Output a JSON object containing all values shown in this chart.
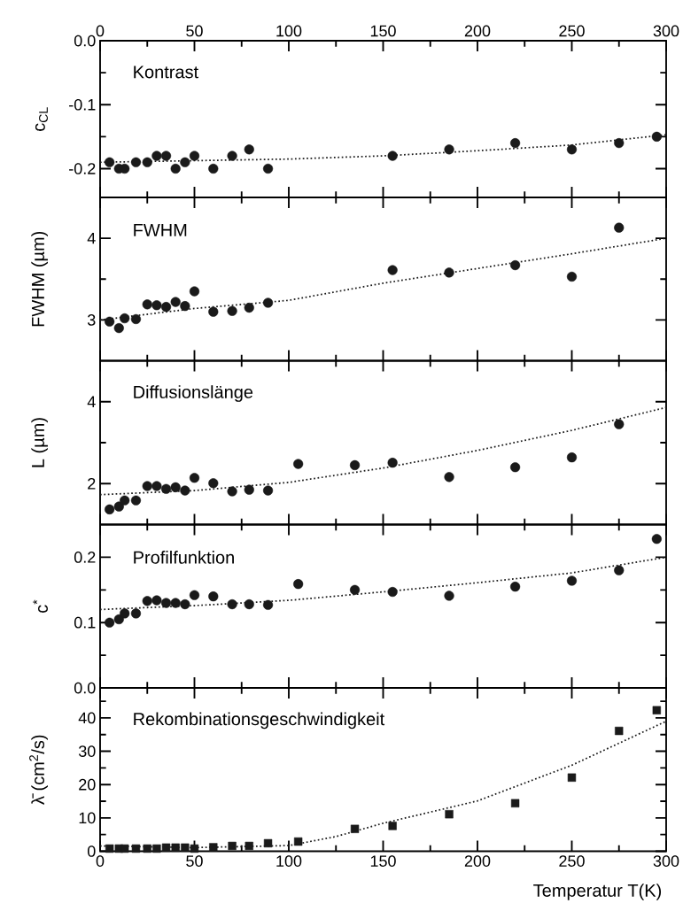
{
  "chart_data": [
    {
      "type": "scatter",
      "title": "Kontrast",
      "ylabel": "c$_{CL}$",
      "xlim": [
        0,
        300
      ],
      "xticks": [
        0,
        {
          "value": 25,
          "label": null
        },
        50,
        {
          "value": 75,
          "label": null
        },
        100,
        {
          "value": 125,
          "label": null
        },
        150,
        {
          "value": 175,
          "label": null
        },
        200,
        {
          "value": 225,
          "label": null
        },
        250,
        {
          "value": 275,
          "label": null
        },
        300
      ],
      "ylim": [
        -0.245,
        0
      ],
      "yticks": [
        {
          "value": -0.2,
          "label": "-0.2"
        },
        {
          "value": -0.15,
          "label": null
        },
        {
          "value": -0.1,
          "label": "-0.1"
        },
        {
          "value": -0.05,
          "label": null
        },
        {
          "value": 0,
          "label": "0.0"
        }
      ],
      "marker": "circle",
      "series": [
        {
          "color": "#1a1a1a",
          "x": [
            5,
            10,
            13,
            19,
            25,
            30,
            35,
            40,
            45,
            50,
            60,
            70,
            79,
            89,
            155,
            185,
            220,
            250,
            275,
            295
          ],
          "values": [
            -0.19,
            -0.2,
            -0.2,
            -0.19,
            -0.19,
            -0.18,
            -0.18,
            -0.2,
            -0.19,
            -0.18,
            -0.2,
            -0.18,
            -0.17,
            -0.2,
            -0.18,
            -0.17,
            -0.16,
            -0.17,
            -0.16,
            -0.15
          ]
        },
        {
          "type": "line",
          "color": "#1a1a1a",
          "line_style": "dotted",
          "marker": "none",
          "x": [
            0,
            100,
            150,
            200,
            250,
            300
          ],
          "values": [
            -0.19,
            -0.185,
            -0.18,
            -0.172,
            -0.163,
            -0.147
          ]
        }
      ]
    },
    {
      "type": "scatter",
      "title": "FWHM",
      "ylabel": "FWHM (µm)",
      "xlim": [
        0,
        300
      ],
      "xticks": [
        0,
        {
          "value": 25,
          "label": null
        },
        50,
        {
          "value": 75,
          "label": null
        },
        100,
        {
          "value": 125,
          "label": null
        },
        150,
        {
          "value": 175,
          "label": null
        },
        200,
        {
          "value": 225,
          "label": null
        },
        250,
        {
          "value": 275,
          "label": null
        },
        300
      ],
      "ylim": [
        2.5,
        4.5
      ],
      "yticks": [
        3,
        {
          "value": 3.5,
          "label": null
        },
        4
      ],
      "tick_labels": "y",
      "marker": "circle",
      "series": [
        {
          "color": "#1a1a1a",
          "x": [
            5,
            10,
            13,
            19,
            25,
            30,
            35,
            40,
            45,
            50,
            60,
            70,
            79,
            89,
            155,
            185,
            220,
            250,
            275
          ],
          "values": [
            2.98,
            2.9,
            3.02,
            3.01,
            3.19,
            3.18,
            3.16,
            3.22,
            3.17,
            3.35,
            3.1,
            3.11,
            3.15,
            3.21,
            3.61,
            3.58,
            3.67,
            3.53,
            4.13
          ]
        },
        {
          "type": "line",
          "color": "#1a1a1a",
          "line_style": "dotted",
          "marker": "none",
          "x": [
            0,
            50,
            100,
            150,
            200,
            250,
            300
          ],
          "values": [
            3.0,
            3.14,
            3.24,
            3.45,
            3.63,
            3.81,
            4.0
          ]
        }
      ]
    },
    {
      "type": "scatter",
      "title": "Diffusionslänge",
      "ylabel": "L  (µm)",
      "xlim": [
        0,
        300
      ],
      "xticks": [
        0,
        {
          "value": 25,
          "label": null
        },
        50,
        {
          "value": 75,
          "label": null
        },
        100,
        {
          "value": 125,
          "label": null
        },
        150,
        {
          "value": 175,
          "label": null
        },
        200,
        {
          "value": 225,
          "label": null
        },
        250,
        {
          "value": 275,
          "label": null
        },
        300
      ],
      "ylim": [
        1,
        5
      ],
      "yticks": [
        2,
        {
          "value": 3,
          "label": null
        },
        4
      ],
      "tick_labels": "y",
      "marker": "circle",
      "series": [
        {
          "color": "#1a1a1a",
          "x": [
            5,
            10,
            13,
            19,
            25,
            30,
            35,
            40,
            45,
            50,
            60,
            70,
            79,
            89,
            105,
            135,
            155,
            185,
            220,
            250,
            275
          ],
          "values": [
            1.37,
            1.44,
            1.59,
            1.59,
            1.94,
            1.94,
            1.87,
            1.91,
            1.83,
            2.14,
            2.01,
            1.81,
            1.85,
            1.83,
            2.48,
            2.45,
            2.51,
            2.16,
            2.4,
            2.64,
            3.45
          ]
        },
        {
          "type": "line",
          "color": "#1a1a1a",
          "line_style": "dotted",
          "marker": "none",
          "x": [
            0,
            50,
            100,
            150,
            200,
            250,
            300
          ],
          "values": [
            1.73,
            1.83,
            2.03,
            2.38,
            2.81,
            3.3,
            3.86
          ]
        }
      ]
    },
    {
      "type": "scatter",
      "title": "Profilfunktion",
      "ylabel": "c$^{*}$",
      "xlim": [
        0,
        300
      ],
      "xticks": [
        0,
        {
          "value": 25,
          "label": null
        },
        50,
        {
          "value": 75,
          "label": null
        },
        100,
        {
          "value": 125,
          "label": null
        },
        150,
        {
          "value": 175,
          "label": null
        },
        200,
        {
          "value": 225,
          "label": null
        },
        250,
        {
          "value": 275,
          "label": null
        },
        300
      ],
      "ylim": [
        0,
        0.25
      ],
      "yticks": [
        {
          "value": 0,
          "label": "0.0"
        },
        {
          "value": 0.05,
          "label": null
        },
        {
          "value": 0.1,
          "label": "0.1"
        },
        {
          "value": 0.15,
          "label": null
        },
        {
          "value": 0.2,
          "label": "0.2"
        }
      ],
      "tick_labels": "y",
      "marker": "circle",
      "series": [
        {
          "color": "#1a1a1a",
          "x": [
            5,
            10,
            13,
            19,
            25,
            30,
            35,
            40,
            45,
            50,
            60,
            70,
            79,
            89,
            105,
            135,
            155,
            185,
            220,
            250,
            275,
            295
          ],
          "values": [
            0.1,
            0.105,
            0.114,
            0.114,
            0.133,
            0.134,
            0.13,
            0.13,
            0.128,
            0.142,
            0.14,
            0.128,
            0.128,
            0.127,
            0.159,
            0.15,
            0.147,
            0.141,
            0.155,
            0.164,
            0.18,
            0.228
          ]
        },
        {
          "type": "line",
          "color": "#1a1a1a",
          "line_style": "dotted",
          "marker": "none",
          "x": [
            0,
            50,
            100,
            150,
            200,
            250,
            300
          ],
          "values": [
            0.12,
            0.126,
            0.134,
            0.147,
            0.161,
            0.176,
            0.2
          ]
        }
      ]
    },
    {
      "type": "scatter",
      "title": "Rekombinationsgeschwindigkeit",
      "ylabel": "λ̄ (cm$^{2}$/s)",
      "xlabel": "Temperatur T(K)",
      "xlim": [
        0,
        300
      ],
      "xticks": [
        0,
        {
          "value": 25,
          "label": null
        },
        50,
        {
          "value": 75,
          "label": null
        },
        100,
        {
          "value": 125,
          "label": null
        },
        150,
        {
          "value": 175,
          "label": null
        },
        200,
        {
          "value": 225,
          "label": null
        },
        250,
        {
          "value": 275,
          "label": null
        },
        300
      ],
      "ylim": [
        0,
        49
      ],
      "yticks": [
        0,
        {
          "value": 5,
          "label": null
        },
        10,
        {
          "value": 15,
          "label": null
        },
        20,
        {
          "value": 25,
          "label": null
        },
        30,
        {
          "value": 35,
          "label": null
        },
        40,
        {
          "value": 45,
          "label": null
        }
      ],
      "marker": "square",
      "series": [
        {
          "color": "#1a1a1a",
          "x": [
            5,
            10,
            13,
            19,
            25,
            30,
            35,
            40,
            45,
            50,
            60,
            70,
            79,
            89,
            105,
            135,
            155,
            185,
            220,
            250,
            275,
            295
          ],
          "values": [
            0.8,
            0.8,
            0.8,
            0.8,
            0.8,
            0.8,
            1.1,
            1.1,
            1.1,
            0.8,
            1.2,
            1.6,
            1.6,
            2.4,
            2.9,
            6.7,
            7.6,
            11.1,
            14.4,
            22.1,
            36.1,
            42.3
          ]
        },
        {
          "type": "line",
          "color": "#1a1a1a",
          "line_style": "dotted",
          "marker": "none",
          "x": [
            0,
            50,
            100,
            125,
            150,
            200,
            250,
            300
          ],
          "values": [
            1.6,
            1.1,
            1.7,
            4.4,
            8.4,
            15.1,
            25.8,
            39
          ]
        }
      ]
    }
  ]
}
